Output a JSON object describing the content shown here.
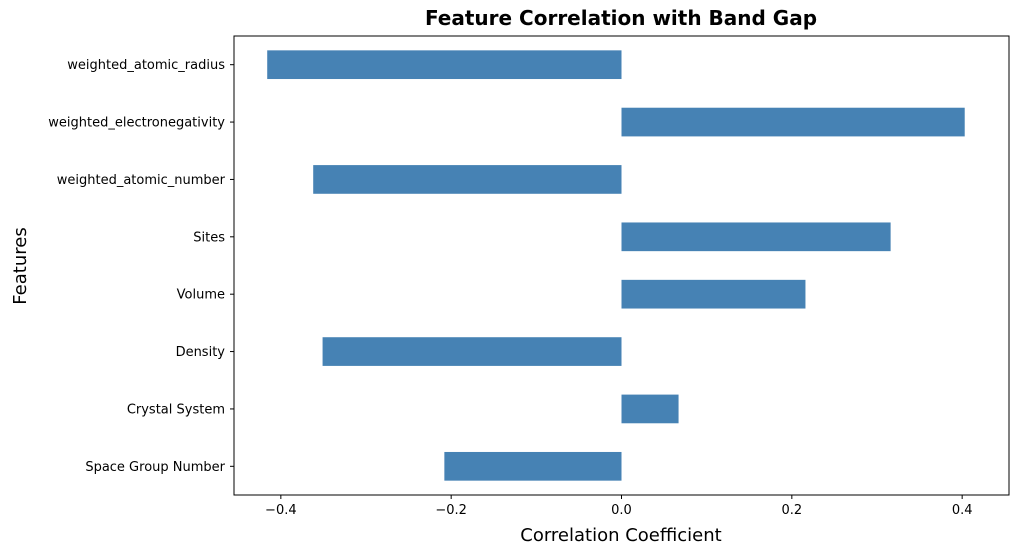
{
  "chart_data": {
    "type": "bar",
    "orientation": "horizontal",
    "title": "Feature Correlation with Band Gap",
    "xlabel": "Correlation Coefficient",
    "ylabel": "Features",
    "categories": [
      "weighted_atomic_radius",
      "weighted_electronegativity",
      "weighted_atomic_number",
      "Sites",
      "Volume",
      "Density",
      "Crystal System",
      "Space Group Number"
    ],
    "values": [
      -0.416,
      0.403,
      -0.362,
      0.316,
      0.216,
      -0.351,
      0.067,
      -0.208
    ],
    "xlim": [
      -0.455,
      0.455
    ],
    "xticks": [
      -0.4,
      -0.2,
      0.0,
      0.2,
      0.4
    ],
    "xtick_labels": [
      "−0.4",
      "−0.2",
      "0.0",
      "0.2",
      "0.4"
    ],
    "bar_color": "#4682b4",
    "grid": false,
    "legend": "none"
  }
}
